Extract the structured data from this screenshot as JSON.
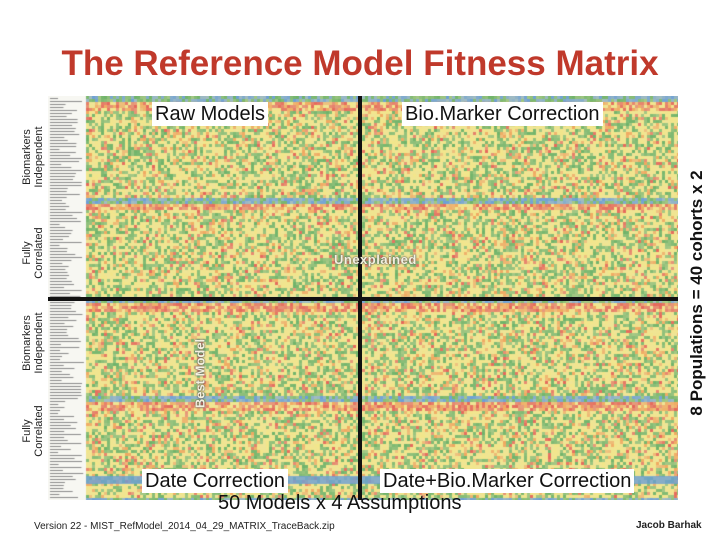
{
  "slide": {
    "title": "The Reference Model Fitness Matrix",
    "quadrants": {
      "top_left": "Raw Models",
      "top_right": "Bio.Marker Correction",
      "bottom_left": "Date Correction",
      "bottom_right": "Date+Bio.Marker Correction"
    },
    "bottom_caption": "50 Models x 4 Assumptions",
    "right_caption": "8 Populations = 40 cohorts x 2",
    "row_groups": [
      {
        "line1": "Biomarkers",
        "line2": "Independent"
      },
      {
        "line1": "Fully",
        "line2": "Correlated"
      },
      {
        "line1": "Biomarkers",
        "line2": "Independent"
      },
      {
        "line1": "Fully",
        "line2": "Correlated"
      }
    ],
    "annotations": {
      "unexplained": "Unexplained",
      "best_model": "Best Model"
    },
    "footer": {
      "version": "Version 22 - MIST_RefModel_2014_04_29_MATRIX_TraceBack.zip",
      "author": "Jacob Barhak"
    },
    "colors": {
      "title": "#c0392b",
      "heat_green": "#6fb36a",
      "heat_yellow": "#f2e58a",
      "heat_orange": "#f0a860",
      "heat_red": "#e5675a",
      "heat_blue": "#6b9fd6"
    }
  }
}
